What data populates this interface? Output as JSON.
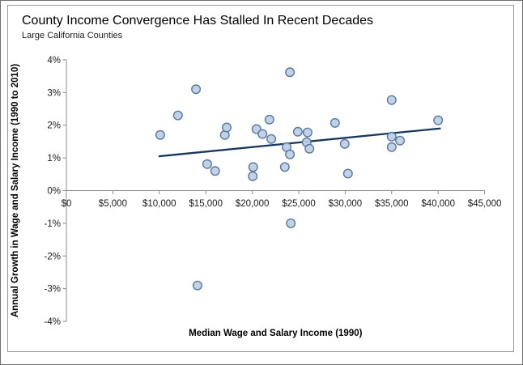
{
  "chart_data": {
    "type": "scatter",
    "title": "County Income Convergence Has Stalled In Recent Decades",
    "subtitle": "Large California Counties",
    "xlabel": "Median Wage and Salary Income (1990)",
    "ylabel": "Annual Growth in Wage and Salary Income (1990 to 2010)",
    "xlim": [
      0,
      45000
    ],
    "ylim": [
      -4,
      4
    ],
    "grid": false,
    "legend": "none",
    "x_ticks": {
      "values": [
        0,
        5000,
        10000,
        15000,
        20000,
        25000,
        30000,
        35000,
        40000,
        45000
      ],
      "labels": [
        "$0",
        "$5,000",
        "$10,000",
        "$15,000",
        "$20,000",
        "$25,000",
        "$30,000",
        "$35,000",
        "$40,000",
        "$45,000"
      ]
    },
    "y_ticks": {
      "values": [
        4,
        3,
        2,
        1,
        0,
        -1,
        -2,
        -3,
        -4
      ],
      "labels": [
        "4%",
        "3%",
        "2%",
        "1%",
        "0%",
        "-1%",
        "-2%",
        "-3%",
        "-4%"
      ]
    },
    "points": [
      {
        "x": 10100,
        "y": 1.7
      },
      {
        "x": 12000,
        "y": 2.3
      },
      {
        "x": 13950,
        "y": 3.1
      },
      {
        "x": 15150,
        "y": 0.81
      },
      {
        "x": 16000,
        "y": 0.6
      },
      {
        "x": 17050,
        "y": 1.7
      },
      {
        "x": 17250,
        "y": 1.93
      },
      {
        "x": 20050,
        "y": 0.44
      },
      {
        "x": 20100,
        "y": 0.72
      },
      {
        "x": 20450,
        "y": 1.88
      },
      {
        "x": 21100,
        "y": 1.73
      },
      {
        "x": 21850,
        "y": 2.17
      },
      {
        "x": 22050,
        "y": 1.58
      },
      {
        "x": 23500,
        "y": 0.72
      },
      {
        "x": 23700,
        "y": 1.33
      },
      {
        "x": 24050,
        "y": 1.11
      },
      {
        "x": 24050,
        "y": 3.62
      },
      {
        "x": 24150,
        "y": -1.0
      },
      {
        "x": 24900,
        "y": 1.8
      },
      {
        "x": 25850,
        "y": 1.48
      },
      {
        "x": 25950,
        "y": 1.78
      },
      {
        "x": 26150,
        "y": 1.28
      },
      {
        "x": 28900,
        "y": 2.07
      },
      {
        "x": 29950,
        "y": 1.43
      },
      {
        "x": 30300,
        "y": 0.52
      },
      {
        "x": 35000,
        "y": 2.77
      },
      {
        "x": 35000,
        "y": 1.65
      },
      {
        "x": 35900,
        "y": 1.53
      },
      {
        "x": 35000,
        "y": 1.33
      },
      {
        "x": 40000,
        "y": 2.15
      },
      {
        "x": 14100,
        "y": -2.9
      }
    ],
    "trendline": {
      "x1": 10000,
      "y1": 1.05,
      "x2": 40200,
      "y2": 1.9
    },
    "colors": {
      "marker_fill": "#bccee5",
      "marker_stroke": "#5a789f",
      "trend_line": "#17375d",
      "axis_line": "#8c8c8c",
      "tick_label": "#1a1a1a",
      "axis_title": "#000000",
      "title": "#000000",
      "frame_border": "#989898"
    }
  }
}
